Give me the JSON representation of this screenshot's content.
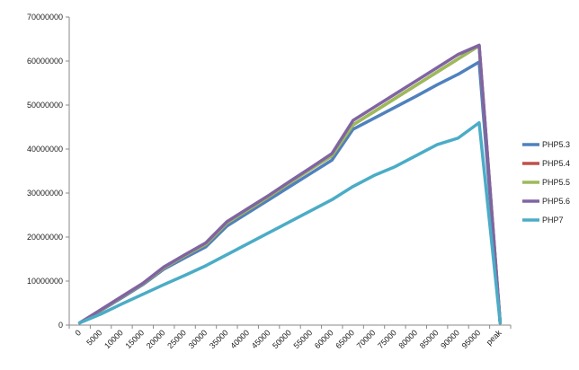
{
  "chart_data": {
    "type": "line",
    "categories": [
      "0",
      "5000",
      "10000",
      "15000",
      "20000",
      "25000",
      "30000",
      "35000",
      "40000",
      "45000",
      "50000",
      "55000",
      "60000",
      "65000",
      "70000",
      "75000",
      "80000",
      "85000",
      "90000",
      "95000",
      "peak"
    ],
    "ylim": [
      0,
      70000000
    ],
    "yticks": [
      0,
      10000000,
      20000000,
      30000000,
      40000000,
      50000000,
      60000000,
      70000000
    ],
    "grid": false,
    "legend_position": "right",
    "series": [
      {
        "name": "PHP5.3",
        "color": "#4f81bd",
        "values": [
          500000,
          3300000,
          6200000,
          9200000,
          12700000,
          15300000,
          17800000,
          22500000,
          25500000,
          28500000,
          31500000,
          34500000,
          37500000,
          44500000,
          47000000,
          49500000,
          52000000,
          54600000,
          57000000,
          59800000,
          500000
        ]
      },
      {
        "name": "PHP5.4",
        "color": "#c0504d",
        "values": [
          500000,
          3400000,
          6400000,
          9400000,
          13000000,
          15800000,
          18400000,
          23200000,
          26200000,
          29200000,
          32400000,
          35500000,
          38500000,
          45500000,
          48500000,
          51500000,
          54500000,
          57500000,
          60500000,
          63500000,
          500000
        ]
      },
      {
        "name": "PHP5.5",
        "color": "#9bbb59",
        "values": [
          500000,
          3400000,
          6400000,
          9400000,
          13000000,
          15800000,
          18400000,
          23200000,
          26200000,
          29200000,
          32400000,
          35500000,
          38500000,
          45500000,
          48500000,
          51500000,
          54500000,
          57500000,
          60500000,
          63500000,
          500000
        ]
      },
      {
        "name": "PHP5.6",
        "color": "#8064a2",
        "values": [
          500000,
          3500000,
          6500000,
          9500000,
          13200000,
          16000000,
          18700000,
          23500000,
          26500000,
          29500000,
          32700000,
          35800000,
          39000000,
          46500000,
          49500000,
          52500000,
          55500000,
          58500000,
          61500000,
          63600000,
          500000
        ]
      },
      {
        "name": "PHP7",
        "color": "#4bacc6",
        "values": [
          500000,
          2500000,
          4800000,
          7000000,
          9200000,
          11300000,
          13500000,
          16000000,
          18500000,
          21000000,
          23500000,
          26000000,
          28500000,
          31500000,
          34000000,
          36000000,
          38500000,
          41000000,
          42500000,
          46000000,
          500000
        ]
      }
    ]
  }
}
